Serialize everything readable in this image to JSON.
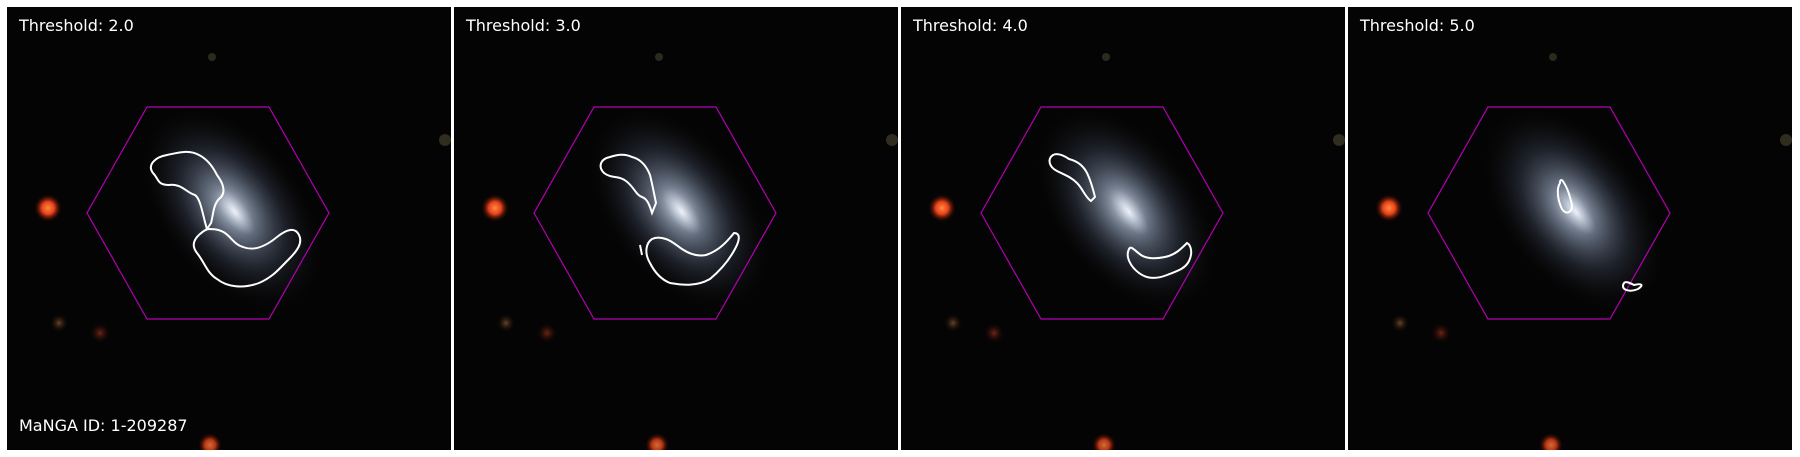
{
  "panels": [
    {
      "label": "Threshold: 2.0"
    },
    {
      "label": "Threshold: 3.0"
    },
    {
      "label": "Threshold: 4.0"
    },
    {
      "label": "Threshold: 5.0"
    }
  ],
  "object_id": "MaNGA ID: 1-209287",
  "colors": {
    "background": "#050404",
    "hexagon": "#b200b2",
    "contour": "#ffffff",
    "text": "#ffffff",
    "bright_star": "#ff5a2a"
  }
}
